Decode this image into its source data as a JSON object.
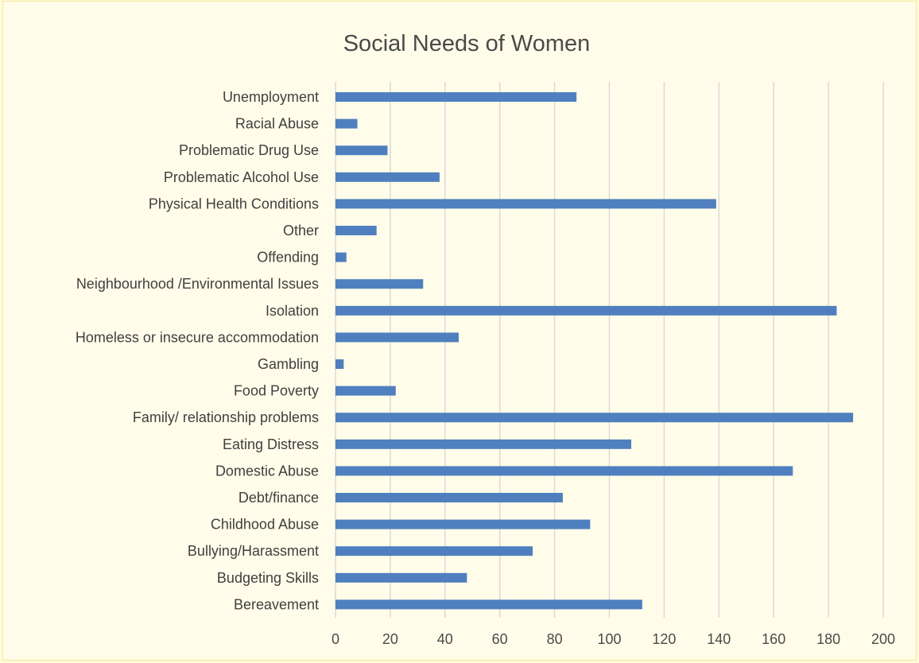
{
  "chart_data": {
    "type": "bar",
    "orientation": "horizontal",
    "title": "Social Needs of Women",
    "xlabel": "",
    "ylabel": "",
    "xlim": [
      0,
      200
    ],
    "ticks": [
      0,
      20,
      40,
      60,
      80,
      100,
      120,
      140,
      160,
      180,
      200
    ],
    "grid": true,
    "legend": "none",
    "bar_color": "#4f7fbf",
    "categories": [
      "Unemployment",
      "Racial Abuse",
      "Problematic Drug Use",
      "Problematic Alcohol Use",
      "Physical Health Conditions",
      "Other",
      "Offending",
      "Neighbourhood /Environmental Issues",
      "Isolation",
      "Homeless or insecure accommodation",
      "Gambling",
      "Food Poverty",
      "Family/ relationship problems",
      "Eating Distress",
      "Domestic Abuse",
      "Debt/finance",
      "Childhood Abuse",
      "Bullying/Harassment",
      "Budgeting Skills",
      "Bereavement"
    ],
    "values": [
      88,
      8,
      19,
      38,
      139,
      15,
      4,
      32,
      183,
      45,
      3,
      22,
      189,
      108,
      167,
      83,
      93,
      72,
      48,
      112
    ]
  }
}
